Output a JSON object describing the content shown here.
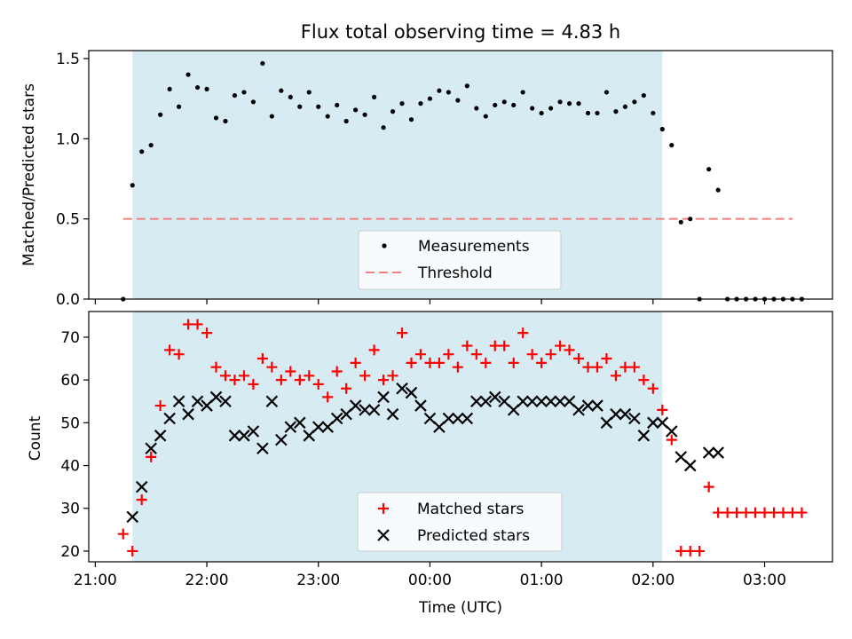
{
  "title": "Flux total observing time = 4.83 h",
  "xlabel": "Time (UTC)",
  "x_ticks": [
    "21:00",
    "22:00",
    "23:00",
    "00:00",
    "01:00",
    "02:00",
    "03:00"
  ],
  "chart_data": [
    {
      "type": "scatter",
      "ylabel": "Matched/Predicted stars",
      "ylim": [
        0,
        1.55
      ],
      "y_ticks": [
        "0.0",
        "0.5",
        "1.0",
        "1.5"
      ],
      "x_units": "minutes since 21:00",
      "shaded_interval": [
        20,
        305
      ],
      "legend": {
        "placement": "lower center",
        "entries": [
          "Measurements",
          "Threshold"
        ]
      },
      "series": [
        {
          "name": "Measurements",
          "color": "#000000",
          "marker": "dot",
          "x": [
            15,
            20,
            25,
            30,
            35,
            40,
            45,
            50,
            55,
            60,
            65,
            70,
            75,
            80,
            85,
            90,
            95,
            100,
            105,
            110,
            115,
            120,
            125,
            130,
            135,
            140,
            145,
            150,
            155,
            160,
            165,
            170,
            175,
            180,
            185,
            190,
            195,
            200,
            205,
            210,
            215,
            220,
            225,
            230,
            235,
            240,
            245,
            250,
            255,
            260,
            265,
            270,
            275,
            280,
            285,
            290,
            295,
            300,
            305,
            310,
            315,
            320,
            325,
            330,
            335,
            340,
            345,
            350,
            355,
            360,
            365,
            370,
            375,
            380
          ],
          "y": [
            0,
            0.71,
            0.92,
            0.96,
            1.15,
            1.31,
            1.2,
            1.4,
            1.32,
            1.31,
            1.13,
            1.11,
            1.27,
            1.29,
            1.23,
            1.47,
            1.14,
            1.3,
            1.26,
            1.2,
            1.29,
            1.2,
            1.14,
            1.21,
            1.11,
            1.18,
            1.15,
            1.26,
            1.07,
            1.17,
            1.22,
            1.12,
            1.22,
            1.25,
            1.3,
            1.29,
            1.24,
            1.33,
            1.19,
            1.14,
            1.21,
            1.23,
            1.21,
            1.29,
            1.19,
            1.16,
            1.19,
            1.23,
            1.22,
            1.22,
            1.16,
            1.16,
            1.29,
            1.17,
            1.2,
            1.23,
            1.27,
            1.16,
            1.06,
            0.96,
            0.48,
            0.5,
            0,
            0.81,
            0.68,
            0,
            0,
            0,
            0,
            0,
            0,
            0,
            0,
            0
          ]
        },
        {
          "name": "Threshold",
          "color": "#f08080",
          "style": "dashed",
          "x": [
            15,
            375
          ],
          "y": [
            0.5,
            0.5
          ]
        }
      ]
    },
    {
      "type": "scatter",
      "ylabel": "Count",
      "ylim": [
        17.5,
        76
      ],
      "y_ticks": [
        "20",
        "30",
        "40",
        "50",
        "60",
        "70"
      ],
      "x_units": "minutes since 21:00",
      "shaded_interval": [
        20,
        305
      ],
      "legend": {
        "placement": "lower center",
        "entries": [
          "Matched stars",
          "Predicted stars"
        ]
      },
      "series": [
        {
          "name": "Matched stars",
          "color": "#ff0000",
          "marker": "plus",
          "x": [
            15,
            20,
            25,
            30,
            35,
            40,
            45,
            50,
            55,
            60,
            65,
            70,
            75,
            80,
            85,
            90,
            95,
            100,
            105,
            110,
            115,
            120,
            125,
            130,
            135,
            140,
            145,
            150,
            155,
            160,
            165,
            170,
            175,
            180,
            185,
            190,
            195,
            200,
            205,
            210,
            215,
            220,
            225,
            230,
            235,
            240,
            245,
            250,
            255,
            260,
            265,
            270,
            275,
            280,
            285,
            290,
            295,
            300,
            305,
            310,
            315,
            320,
            325,
            330,
            335,
            340,
            345,
            350,
            355,
            360,
            365,
            370,
            375,
            380
          ],
          "y": [
            24,
            20,
            32,
            42,
            54,
            67,
            66,
            73,
            73,
            71,
            63,
            61,
            60,
            61,
            59,
            65,
            63,
            60,
            62,
            60,
            61,
            59,
            56,
            62,
            58,
            64,
            61,
            67,
            60,
            61,
            71,
            64,
            66,
            64,
            64,
            66,
            63,
            68,
            66,
            64,
            68,
            68,
            64,
            71,
            66,
            64,
            66,
            68,
            67,
            65,
            63,
            63,
            65,
            61,
            63,
            63,
            60,
            58,
            53,
            46,
            20,
            20,
            20,
            35,
            29,
            29,
            29,
            29,
            29,
            29,
            29,
            29,
            29,
            29
          ]
        },
        {
          "name": "Predicted stars",
          "color": "#000000",
          "marker": "x",
          "x": [
            15,
            20,
            25,
            30,
            35,
            40,
            45,
            50,
            55,
            60,
            65,
            70,
            75,
            80,
            85,
            90,
            95,
            100,
            105,
            110,
            115,
            120,
            125,
            130,
            135,
            140,
            145,
            150,
            155,
            160,
            165,
            170,
            175,
            180,
            185,
            190,
            195,
            200,
            205,
            210,
            215,
            220,
            225,
            230,
            235,
            240,
            245,
            250,
            255,
            260,
            265,
            270,
            275,
            280,
            285,
            290,
            295,
            300,
            305,
            310,
            315,
            320,
            325,
            330,
            335,
            340,
            345,
            350,
            355,
            360,
            365,
            370,
            375,
            380
          ],
          "y": [
            null,
            28,
            35,
            44,
            47,
            51,
            55,
            52,
            55,
            54,
            56,
            55,
            47,
            47,
            48,
            44,
            55,
            46,
            49,
            50,
            47,
            49,
            49,
            51,
            52,
            54,
            53,
            53,
            56,
            52,
            58,
            57,
            54,
            51,
            49,
            51,
            51,
            51,
            55,
            55,
            56,
            55,
            53,
            55,
            55,
            55,
            55,
            55,
            55,
            53,
            54,
            54,
            50,
            52,
            52,
            51,
            47,
            50,
            50,
            48,
            42,
            40,
            null,
            43,
            43,
            null,
            null,
            null,
            null,
            null,
            null,
            null,
            null,
            null
          ]
        }
      ]
    }
  ]
}
